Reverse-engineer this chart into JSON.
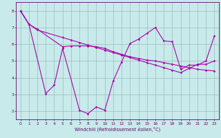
{
  "background_color": "#c8eaea",
  "line_color": "#aa00aa",
  "grid_color": "#99bbbb",
  "axis_color": "#660066",
  "xlabel": "Windchill (Refroidissement éolien,°C)",
  "xlim": [
    -0.5,
    23.5
  ],
  "ylim": [
    1.5,
    8.5
  ],
  "xticks": [
    0,
    1,
    2,
    3,
    4,
    5,
    6,
    7,
    8,
    9,
    10,
    11,
    12,
    13,
    14,
    15,
    16,
    17,
    18,
    19,
    20,
    21,
    22,
    23
  ],
  "yticks": [
    2,
    3,
    4,
    5,
    6,
    7,
    8
  ],
  "series1_x": [
    0,
    1,
    2,
    5,
    6,
    7,
    8,
    9,
    10,
    11,
    12,
    13,
    14,
    15,
    16,
    17,
    18,
    19,
    20,
    21,
    22,
    23
  ],
  "series1_y": [
    8.0,
    7.2,
    6.85,
    6.4,
    6.25,
    6.1,
    5.95,
    5.8,
    5.65,
    5.5,
    5.35,
    5.2,
    5.05,
    4.9,
    4.75,
    4.6,
    4.45,
    4.3,
    4.55,
    4.8,
    4.8,
    5.0
  ],
  "series2_x": [
    0,
    1,
    2,
    5,
    6,
    7,
    8,
    9,
    10,
    11,
    12,
    13,
    14,
    15,
    16,
    17,
    18,
    19,
    20,
    21,
    22,
    23
  ],
  "series2_y": [
    8.0,
    7.2,
    6.9,
    5.85,
    5.9,
    5.9,
    5.9,
    5.85,
    5.75,
    5.55,
    5.4,
    5.25,
    5.15,
    5.05,
    5.0,
    4.9,
    4.8,
    4.7,
    4.6,
    4.5,
    4.45,
    4.4
  ],
  "series3_x": [
    0,
    1,
    3,
    4,
    5,
    7,
    8,
    9,
    10,
    11,
    12,
    13,
    14,
    15,
    16,
    17,
    18,
    19,
    20,
    21,
    22,
    23
  ],
  "series3_y": [
    8.0,
    7.2,
    3.05,
    3.55,
    5.75,
    2.05,
    1.85,
    2.25,
    2.05,
    3.8,
    4.95,
    6.05,
    6.3,
    6.65,
    7.0,
    6.2,
    6.15,
    4.5,
    4.75,
    4.75,
    5.0,
    6.5
  ]
}
